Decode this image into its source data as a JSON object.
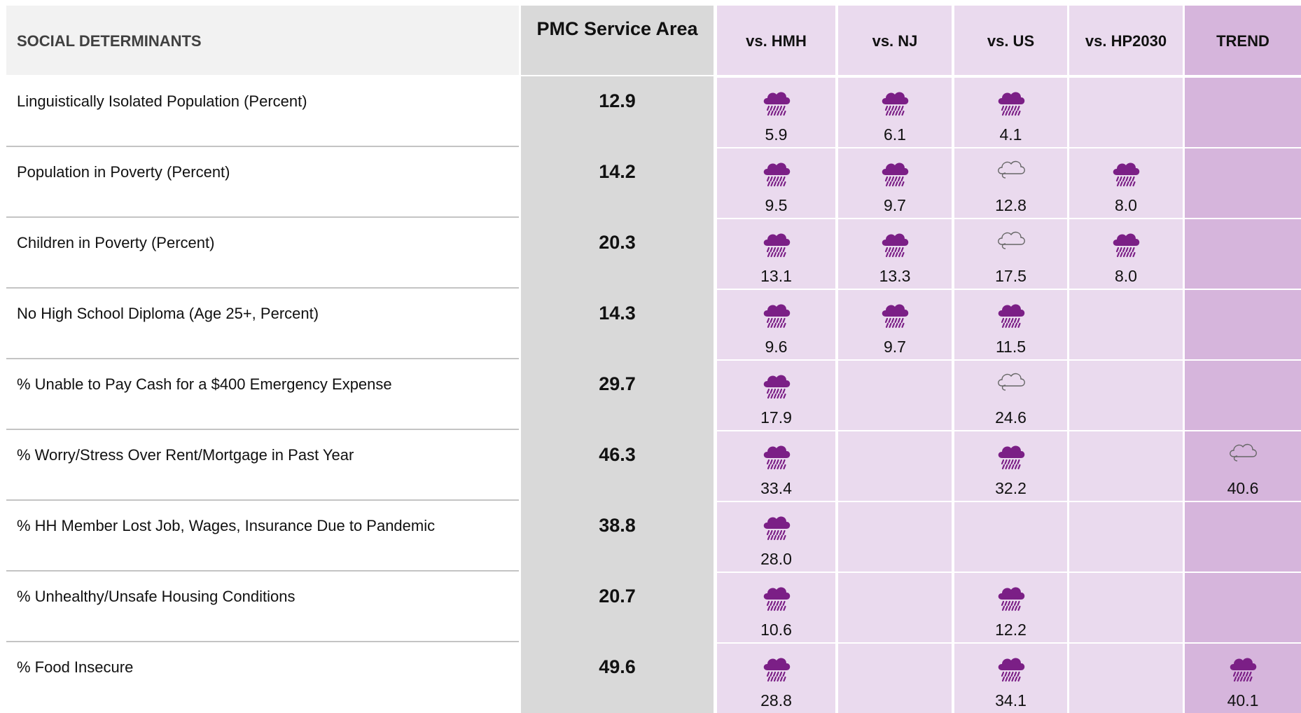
{
  "table": {
    "header": [
      "SOCIAL DETERMINANTS",
      "PMC Service Area",
      "vs. HMH",
      "vs. NJ",
      "vs. US",
      "vs. HP2030",
      "TREND"
    ],
    "rows": [
      {
        "label": "Linguistically Isolated Population (Percent)",
        "value": "12.9",
        "cells": [
          {
            "icon": "storm",
            "value": "5.9"
          },
          {
            "icon": "storm",
            "value": "6.1"
          },
          {
            "icon": "storm",
            "value": "4.1"
          },
          null,
          null
        ]
      },
      {
        "label": "Population in Poverty (Percent)",
        "value": "14.2",
        "cells": [
          {
            "icon": "storm",
            "value": "9.5"
          },
          {
            "icon": "storm",
            "value": "9.7"
          },
          {
            "icon": "cloud",
            "value": "12.8"
          },
          {
            "icon": "storm",
            "value": "8.0"
          },
          null
        ]
      },
      {
        "label": "Children in Poverty (Percent)",
        "value": "20.3",
        "cells": [
          {
            "icon": "storm",
            "value": "13.1"
          },
          {
            "icon": "storm",
            "value": "13.3"
          },
          {
            "icon": "cloud",
            "value": "17.5"
          },
          {
            "icon": "storm",
            "value": "8.0"
          },
          null
        ]
      },
      {
        "label": "No High School Diploma (Age 25+, Percent)",
        "value": "14.3",
        "cells": [
          {
            "icon": "storm",
            "value": "9.6"
          },
          {
            "icon": "storm",
            "value": "9.7"
          },
          {
            "icon": "storm",
            "value": "11.5"
          },
          null,
          null
        ]
      },
      {
        "label": "% Unable to Pay Cash for a $400 Emergency Expense",
        "value": "29.7",
        "cells": [
          {
            "icon": "storm",
            "value": "17.9"
          },
          null,
          {
            "icon": "cloud",
            "value": "24.6"
          },
          null,
          null
        ]
      },
      {
        "label": "% Worry/Stress Over Rent/Mortgage in Past Year",
        "value": "46.3",
        "cells": [
          {
            "icon": "storm",
            "value": "33.4"
          },
          null,
          {
            "icon": "storm",
            "value": "32.2"
          },
          null,
          {
            "icon": "cloud",
            "value": "40.6"
          }
        ]
      },
      {
        "label": "% HH Member Lost Job, Wages, Insurance Due to Pandemic",
        "value": "38.8",
        "cells": [
          {
            "icon": "storm",
            "value": "28.0"
          },
          null,
          null,
          null,
          null
        ]
      },
      {
        "label": "% Unhealthy/Unsafe Housing Conditions",
        "value": "20.7",
        "cells": [
          {
            "icon": "storm",
            "value": "10.6"
          },
          null,
          {
            "icon": "storm",
            "value": "12.2"
          },
          null,
          null
        ]
      },
      {
        "label": "% Food Insecure",
        "value": "49.6",
        "cells": [
          {
            "icon": "storm",
            "value": "28.8"
          },
          null,
          {
            "icon": "storm",
            "value": "34.1"
          },
          null,
          {
            "icon": "storm",
            "value": "40.1"
          }
        ]
      }
    ]
  }
}
